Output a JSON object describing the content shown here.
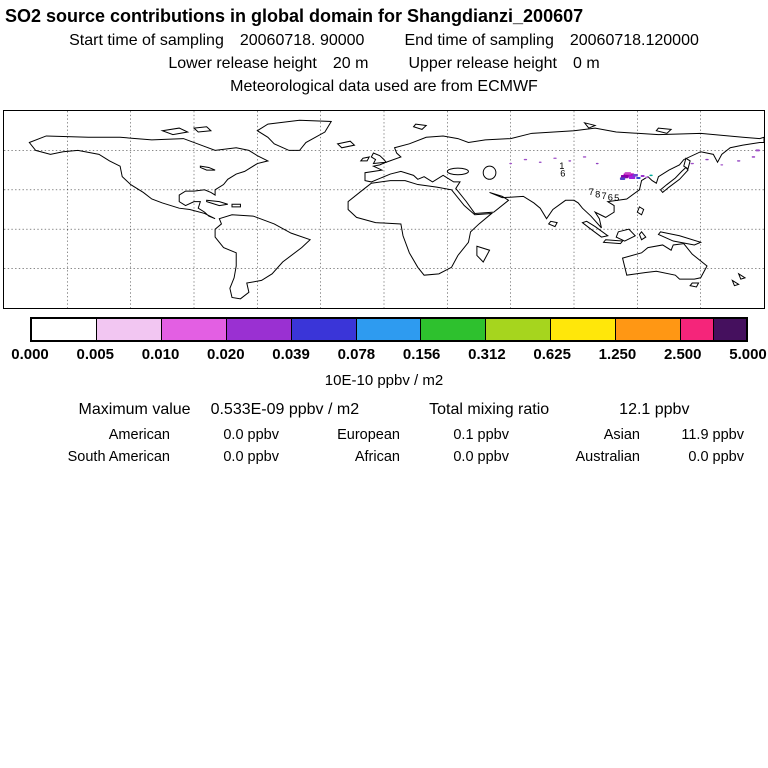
{
  "header": {
    "title": "SO2 source contributions in global domain for Shangdianzi_200607",
    "start_label": "Start time of sampling",
    "start_value": "20060718. 90000",
    "end_label": "End time of sampling",
    "end_value": "20060718.120000",
    "lower_label": "Lower release height",
    "lower_value": "20 m",
    "upper_label": "Upper release height",
    "upper_value": "0 m",
    "met_line": "Meteorological data used are from ECMWF"
  },
  "colorbar": {
    "tick_labels": [
      "0.000",
      "0.005",
      "0.010",
      "0.020",
      "0.039",
      "0.078",
      "0.156",
      "0.312",
      "0.625",
      "1.250",
      "2.500",
      "5.000"
    ],
    "segments": [
      {
        "color": "#FFFFFF",
        "span": 1
      },
      {
        "color": "#F2C6F2",
        "span": 1
      },
      {
        "color": "#E35FE3",
        "span": 1
      },
      {
        "color": "#9A30D2",
        "span": 1
      },
      {
        "color": "#3A35D8",
        "span": 1
      },
      {
        "color": "#2E9BF0",
        "span": 1
      },
      {
        "color": "#2EC12E",
        "span": 1
      },
      {
        "color": "#A6D51E",
        "span": 1
      },
      {
        "color": "#FFE70A",
        "span": 1
      },
      {
        "color": "#FF9714",
        "span": 1
      },
      {
        "color": "#F5257A",
        "span": 0.5
      },
      {
        "color": "#45105E",
        "span": 0.5
      }
    ],
    "units": "10E-10 ppbv / m2"
  },
  "map": {
    "lon_min": -180,
    "lon_max": 180,
    "lat_min": -60,
    "lat_max": 90,
    "grid_step": 30,
    "markers": [
      {
        "lon": 116,
        "lat": 41,
        "w": 5,
        "h": 3,
        "color": "#BB00BB"
      },
      {
        "lon": 114,
        "lat": 40,
        "w": 3.5,
        "h": 2.5,
        "color": "#8800AA"
      },
      {
        "lon": 117.5,
        "lat": 39.5,
        "w": 3,
        "h": 2.5,
        "color": "#A020E0"
      },
      {
        "lon": 115.5,
        "lat": 42.5,
        "w": 3,
        "h": 2,
        "color": "#C846C8"
      },
      {
        "lon": 113,
        "lat": 38.5,
        "w": 2.5,
        "h": 2,
        "color": "#5040C8"
      },
      {
        "lon": 119,
        "lat": 41,
        "w": 2.5,
        "h": 2,
        "color": "#7040D0"
      },
      {
        "lon": 120.5,
        "lat": 39,
        "w": 2,
        "h": 1.5,
        "color": "#3348CC"
      },
      {
        "lon": 122.5,
        "lat": 40.5,
        "w": 1.8,
        "h": 1.5,
        "color": "#9932CC"
      },
      {
        "lon": 124.5,
        "lat": 39.5,
        "w": 1.5,
        "h": 1.2,
        "color": "#B060D8"
      },
      {
        "lon": 126.5,
        "lat": 41,
        "w": 1.5,
        "h": 1.2,
        "color": "#00AA99"
      },
      {
        "lon": 60,
        "lat": 50,
        "w": 1.3,
        "h": 1,
        "color": "#A050C8"
      },
      {
        "lon": 67,
        "lat": 53,
        "w": 1.6,
        "h": 1,
        "color": "#A050C8"
      },
      {
        "lon": 74,
        "lat": 51,
        "w": 1.3,
        "h": 1,
        "color": "#9040C0"
      },
      {
        "lon": 81,
        "lat": 54,
        "w": 1.6,
        "h": 1,
        "color": "#A050C8"
      },
      {
        "lon": 88,
        "lat": 52,
        "w": 1.3,
        "h": 1,
        "color": "#9040C0"
      },
      {
        "lon": 95,
        "lat": 55,
        "w": 1.6,
        "h": 1,
        "color": "#A050C8"
      },
      {
        "lon": 101,
        "lat": 50,
        "w": 1.3,
        "h": 1,
        "color": "#9040C0"
      },
      {
        "lon": 146,
        "lat": 50,
        "w": 1.6,
        "h": 1,
        "color": "#A050C8"
      },
      {
        "lon": 153,
        "lat": 53,
        "w": 1.6,
        "h": 1,
        "color": "#9040C0"
      },
      {
        "lon": 160,
        "lat": 49,
        "w": 1.3,
        "h": 1,
        "color": "#A050C8"
      },
      {
        "lon": 168,
        "lat": 52,
        "w": 1.6,
        "h": 1,
        "color": "#9040C0"
      },
      {
        "lon": 175,
        "lat": 55,
        "w": 1.6,
        "h": 1.2,
        "color": "#A050C8"
      },
      {
        "lon": 177,
        "lat": 60,
        "w": 2,
        "h": 1.5,
        "color": "#A050C8"
      }
    ],
    "labels": [
      {
        "lon": 83,
        "lat": 46,
        "text": "1"
      },
      {
        "lon": 83.5,
        "lat": 40,
        "text": "6"
      },
      {
        "lon": 97,
        "lat": 26,
        "text": "7"
      },
      {
        "lon": 100,
        "lat": 24,
        "text": "8"
      },
      {
        "lon": 103,
        "lat": 23,
        "text": "7"
      },
      {
        "lon": 106,
        "lat": 22,
        "text": "6"
      },
      {
        "lon": 109,
        "lat": 21.5,
        "text": "5"
      }
    ]
  },
  "stats": {
    "max_label": "Maximum value",
    "max_value": "0.533E-09 ppbv / m2",
    "total_label": "Total mixing ratio",
    "total_value": "12.1 ppbv",
    "regions": [
      {
        "label": "American",
        "value": "0.0 ppbv"
      },
      {
        "label": "European",
        "value": "0.1 ppbv"
      },
      {
        "label": "Asian",
        "value": "11.9 ppbv"
      },
      {
        "label": "South American",
        "value": "0.0 ppbv"
      },
      {
        "label": "African",
        "value": "0.0 ppbv"
      },
      {
        "label": "Australian",
        "value": "0.0 ppbv"
      }
    ]
  },
  "chart_data": {
    "type": "heatmap",
    "title": "SO2 source contributions in global domain for Shangdianzi_200607",
    "projection": "equirectangular",
    "lon_range": [
      -180,
      180
    ],
    "lat_range": [
      -60,
      90
    ],
    "grid_step_deg": 30,
    "colorbar_levels": [
      0.0,
      0.005,
      0.01,
      0.02,
      0.039,
      0.078,
      0.156,
      0.312,
      0.625,
      1.25,
      2.5,
      5.0
    ],
    "colorbar_units": "10E-10 ppbv / m2",
    "maximum_value": "0.533E-09 ppbv / m2",
    "total_mixing_ratio_ppbv": 12.1,
    "contributions_ppbv": {
      "American": 0.0,
      "European": 0.1,
      "Asian": 11.9,
      "South American": 0.0,
      "African": 0.0,
      "Australian": 0.0
    },
    "hotspot": {
      "lon": 116,
      "lat": 41
    }
  }
}
